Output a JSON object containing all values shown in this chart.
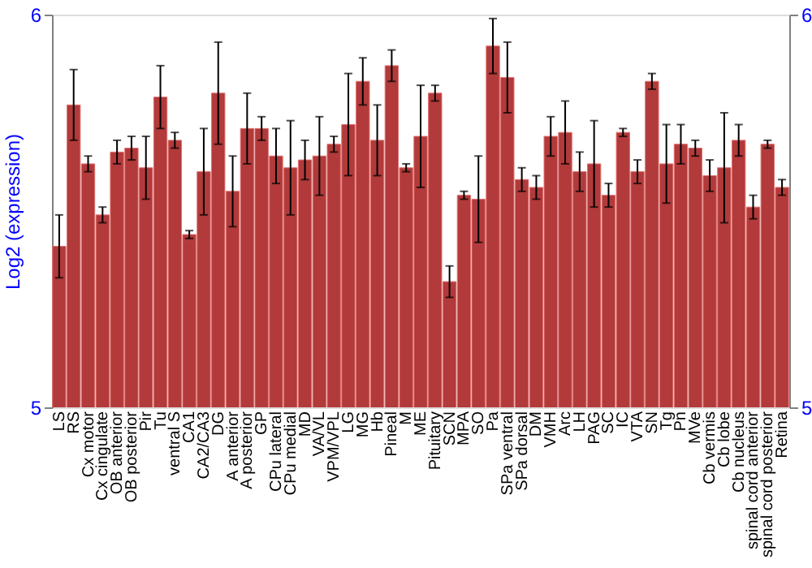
{
  "chart_data": {
    "type": "bar",
    "ylabel": "Log2 (expression)",
    "categories": [
      "LS",
      "RS",
      "Cx motor",
      "Cx cingulate",
      "OB anterior",
      "OB posterior",
      "Pir",
      "Tu",
      "ventral S",
      "CA1",
      "CA2/CA3",
      "DG",
      "A anterior",
      "A posterior",
      "GP",
      "CPu lateral",
      "CPu medial",
      "MD",
      "VA/VL",
      "VPM/VPL",
      "LG",
      "MG",
      "Hb",
      "Pineal",
      "M",
      "ME",
      "Pituitary",
      "SCN",
      "MPA",
      "SO",
      "Pa",
      "SPa ventral",
      "SPa dorsal",
      "DM",
      "VMH",
      "Arc",
      "LH",
      "PAG",
      "SC",
      "IC",
      "VTA",
      "SN",
      "Tg",
      "Pn",
      "MVe",
      "Cb vermis",
      "Cb lobe",
      "Cb nucleus",
      "spinal cord anterior",
      "spinal cord posterior",
      "Retina"
    ],
    "series": [
      {
        "color": "#b23a3a",
        "values": [
          5.41,
          5.77,
          5.62,
          5.49,
          5.65,
          5.66,
          5.61,
          5.79,
          5.68,
          5.44,
          5.6,
          5.8,
          5.55,
          5.71,
          5.71,
          5.64,
          5.61,
          5.63,
          5.64,
          5.67,
          5.72,
          5.83,
          5.68,
          5.87,
          5.61,
          5.69,
          5.8,
          5.32,
          5.54,
          5.53,
          5.92,
          5.84,
          5.58,
          5.56,
          5.69,
          5.7,
          5.6,
          5.62,
          5.54,
          5.7,
          5.6,
          5.83,
          5.62,
          5.67,
          5.66,
          5.59,
          5.61,
          5.68,
          5.51,
          5.67,
          5.56
        ],
        "errors": [
          0.08,
          0.09,
          0.02,
          0.02,
          0.03,
          0.03,
          0.08,
          0.08,
          0.02,
          0.01,
          0.11,
          0.13,
          0.09,
          0.09,
          0.03,
          0.07,
          0.12,
          0.05,
          0.1,
          0.02,
          0.13,
          0.06,
          0.09,
          0.04,
          0.01,
          0.13,
          0.02,
          0.04,
          0.01,
          0.11,
          0.07,
          0.09,
          0.03,
          0.03,
          0.05,
          0.08,
          0.05,
          0.11,
          0.03,
          0.01,
          0.03,
          0.02,
          0.1,
          0.05,
          0.02,
          0.04,
          0.14,
          0.04,
          0.03,
          0.01,
          0.02
        ]
      }
    ],
    "ylim": [
      5,
      6
    ],
    "yticks": [
      5,
      6
    ],
    "y2lim": [
      5,
      6
    ],
    "y2ticks": [
      5,
      6
    ]
  }
}
